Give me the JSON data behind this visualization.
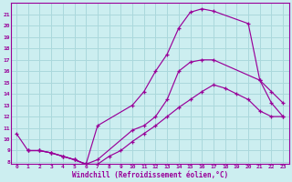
{
  "xlabel": "Windchill (Refroidissement éolien,°C)",
  "xlim": [
    -0.5,
    23.5
  ],
  "ylim": [
    7.8,
    22.0
  ],
  "xticks": [
    0,
    1,
    2,
    3,
    4,
    5,
    6,
    7,
    8,
    9,
    10,
    11,
    12,
    13,
    14,
    15,
    16,
    17,
    18,
    19,
    20,
    21,
    22,
    23
  ],
  "yticks": [
    8,
    9,
    10,
    11,
    12,
    13,
    14,
    15,
    16,
    17,
    18,
    19,
    20,
    21
  ],
  "bg_color": "#cceef0",
  "grid_color": "#aad8dc",
  "line_color": "#990099",
  "line1_x": [
    0,
    1,
    2,
    3,
    4,
    5,
    6,
    7,
    10,
    11,
    12,
    13,
    14,
    15,
    16,
    17,
    21,
    22,
    23
  ],
  "line1_y": [
    10.5,
    9.0,
    9.0,
    8.8,
    8.5,
    8.2,
    7.8,
    8.2,
    10.8,
    11.2,
    12.0,
    13.5,
    16.0,
    16.8,
    17.0,
    17.0,
    15.2,
    13.2,
    12.0
  ],
  "line2_x": [
    1,
    2,
    3,
    4,
    5,
    6,
    7,
    10,
    11,
    12,
    13,
    14,
    15,
    16,
    17,
    20,
    21,
    22,
    23
  ],
  "line2_y": [
    9.0,
    9.0,
    8.8,
    8.5,
    8.2,
    7.8,
    11.2,
    13.0,
    14.2,
    16.0,
    17.5,
    19.8,
    21.2,
    21.5,
    21.3,
    20.2,
    15.2,
    14.2,
    13.2
  ],
  "line3_x": [
    1,
    2,
    3,
    4,
    5,
    6,
    7,
    8,
    9,
    10,
    11,
    12,
    13,
    14,
    15,
    16,
    17,
    18,
    19,
    20,
    21,
    22,
    23
  ],
  "line3_y": [
    9.0,
    9.0,
    8.8,
    8.5,
    8.2,
    7.8,
    7.8,
    8.5,
    9.0,
    9.8,
    10.5,
    11.2,
    12.0,
    12.8,
    13.5,
    14.2,
    14.8,
    14.5,
    14.0,
    13.5,
    12.5,
    12.0,
    12.0
  ]
}
